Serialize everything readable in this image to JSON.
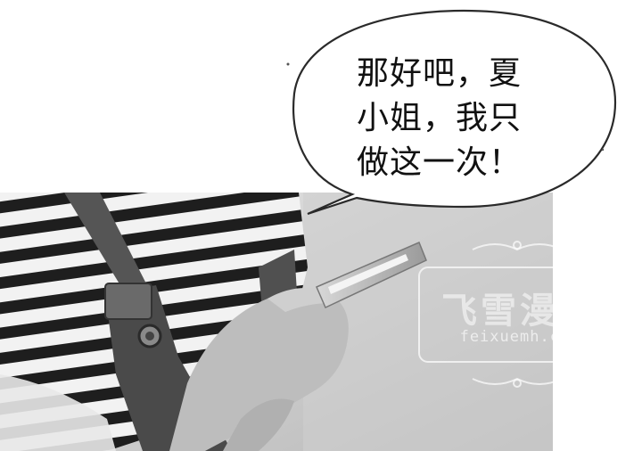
{
  "speech_bubble": {
    "lines": [
      "那好吧，夏",
      "小姐，我只",
      "做这一次！"
    ]
  },
  "watermark": {
    "title": "飞雪漫画",
    "url": "feixuemh.com"
  },
  "colors": {
    "background": "#ffffff",
    "panel_background": "#c9c9c9",
    "stripe_dark": "#1e1e1e",
    "stripe_light": "#f2f2f2",
    "skin": "#bdbdbd",
    "denim": "#4a4a4a"
  }
}
